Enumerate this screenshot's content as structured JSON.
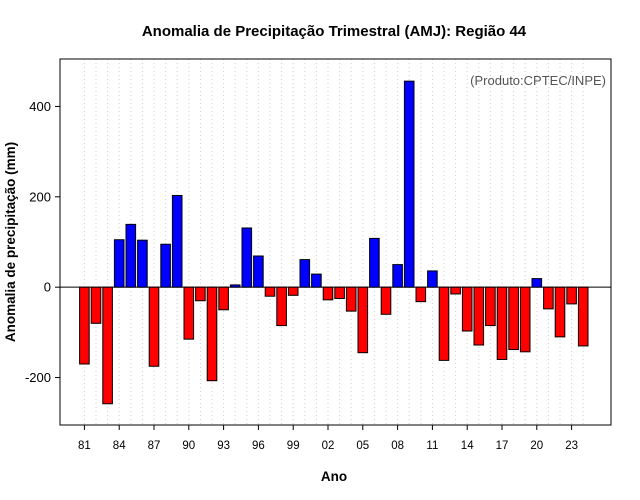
{
  "chart_data": {
    "type": "bar",
    "title": "Anomalia de Precipitação Trimestral (AMJ): Região 44",
    "xlabel": "Ano",
    "ylabel": "Anomalia de precipitação (mm)",
    "annotation": "(Produto:CPTEC/INPE)",
    "ylim": [
      -305,
      505
    ],
    "y_ticks": [
      -200,
      0,
      200,
      400
    ],
    "grid": "vertical dotted",
    "colors": {
      "positive": "#0000ff",
      "negative": "#ff0000",
      "outline": "#000000"
    },
    "categories": [
      "81",
      "82",
      "83",
      "84",
      "85",
      "86",
      "87",
      "88",
      "89",
      "90",
      "91",
      "92",
      "93",
      "94",
      "95",
      "96",
      "97",
      "98",
      "99",
      "00",
      "01",
      "02",
      "03",
      "04",
      "05",
      "06",
      "07",
      "08",
      "09",
      "10",
      "11",
      "12",
      "13",
      "14",
      "15",
      "16",
      "17",
      "18",
      "19",
      "20",
      "21",
      "22",
      "23",
      "24"
    ],
    "x_tick_labels": [
      "81",
      "84",
      "87",
      "90",
      "93",
      "96",
      "99",
      "02",
      "05",
      "08",
      "11",
      "14",
      "17",
      "20",
      "23"
    ],
    "values": [
      -170,
      -80,
      -258,
      105,
      139,
      104,
      -175,
      95,
      203,
      -115,
      -30,
      -207,
      -50,
      5,
      131,
      69,
      -20,
      -85,
      -18,
      61,
      29,
      -28,
      -25,
      -53,
      -145,
      108,
      -60,
      50,
      456,
      -32,
      36,
      -162,
      -15,
      -97,
      -128,
      -85,
      -160,
      -138,
      -143,
      19,
      -48,
      -110,
      -37,
      -130
    ]
  }
}
